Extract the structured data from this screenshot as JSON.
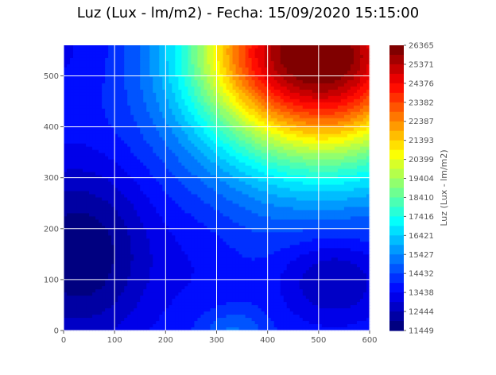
{
  "chart_data": {
    "type": "heatmap",
    "subtype": "filled-contour",
    "title": "Luz (Lux - lm/m2) - Fecha: 15/09/2020 15:15:00",
    "xlabel": "",
    "ylabel": "",
    "xlim": [
      0,
      600
    ],
    "ylim": [
      0,
      560
    ],
    "xticks": [
      "0",
      "100",
      "200",
      "300",
      "400",
      "500",
      "600"
    ],
    "yticks": [
      "0",
      "100",
      "200",
      "300",
      "400",
      "500"
    ],
    "grid": true,
    "colormap": "jet",
    "colorbar": {
      "label": "Luz (Lux - lm/m2)",
      "min": 11449,
      "max": 26365,
      "ticks": [
        "26365",
        "25371",
        "24376",
        "23382",
        "22387",
        "21393",
        "20399",
        "19404",
        "18410",
        "17416",
        "16421",
        "15427",
        "14432",
        "13438",
        "12444",
        "11449"
      ]
    },
    "field_samples": [
      {
        "x": 500,
        "y": 530,
        "value": 26365
      },
      {
        "x": 350,
        "y": 420,
        "value": 21393
      },
      {
        "x": 230,
        "y": 500,
        "value": 17416
      },
      {
        "x": 40,
        "y": 160,
        "value": 11449
      },
      {
        "x": 520,
        "y": 110,
        "value": 12444
      },
      {
        "x": 320,
        "y": 10,
        "value": 15427
      }
    ]
  }
}
